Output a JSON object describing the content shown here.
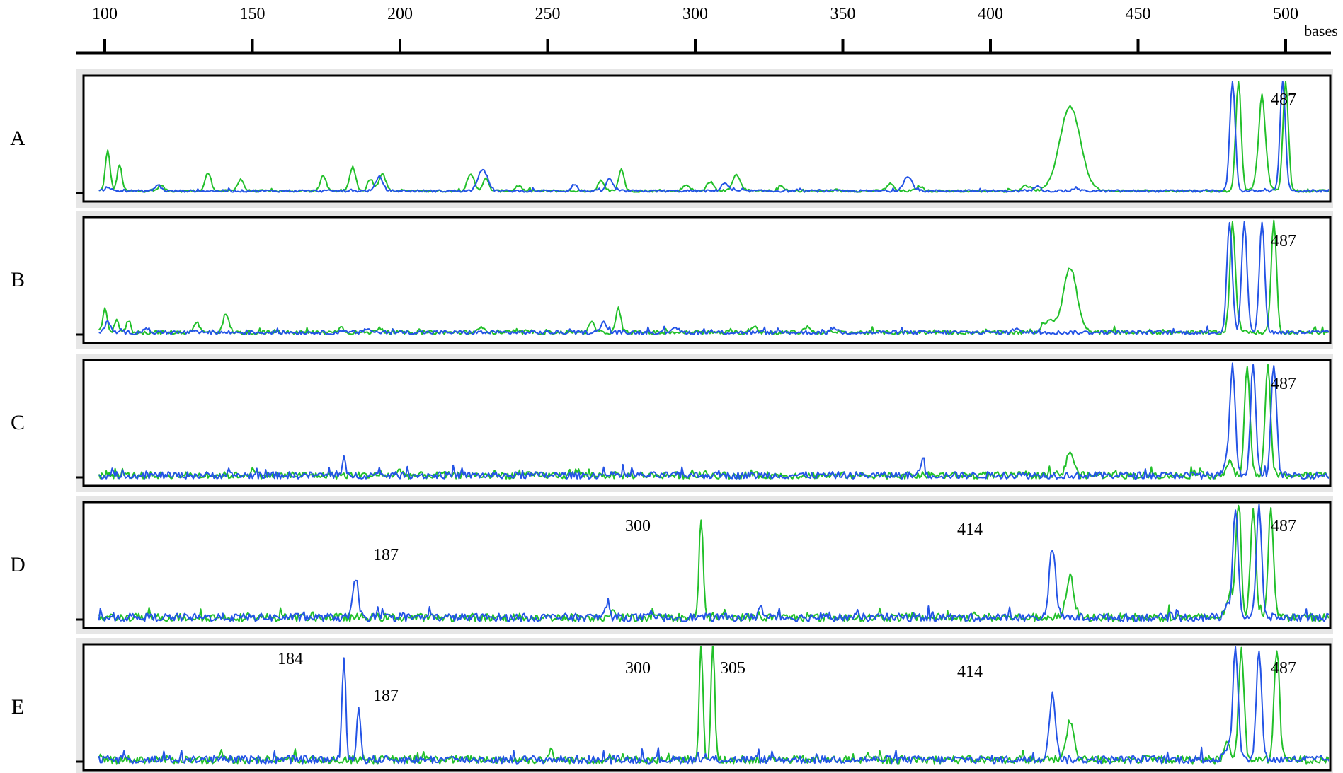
{
  "chart_data": {
    "type": "line",
    "title": "",
    "xlabel": "",
    "ylabel": "",
    "x_unit": "bases",
    "xlim": [
      90,
      525
    ],
    "x_ticks": [
      100,
      150,
      200,
      250,
      300,
      350,
      400,
      450,
      500
    ],
    "x_tick_labels": [
      "100",
      "150",
      "200",
      "250",
      "300",
      "350",
      "400",
      "450",
      "500"
    ],
    "grid": false,
    "legend": "none",
    "colors": {
      "green": "#22c02a",
      "blue": "#2454e6"
    },
    "panels": [
      {
        "label": "A",
        "noise": 0.012,
        "annotations": [
          {
            "text": "487",
            "x": 492
          }
        ],
        "series": [
          {
            "color": "green",
            "peaks": [
              [
                101,
                0.4,
                0.8
              ],
              [
                105,
                0.26,
                0.8
              ],
              [
                119,
                0.06,
                0.9
              ],
              [
                135,
                0.18,
                1.0
              ],
              [
                146,
                0.12,
                1.0
              ],
              [
                174,
                0.16,
                0.9
              ],
              [
                184,
                0.24,
                1.0
              ],
              [
                190,
                0.12,
                1.0
              ],
              [
                194,
                0.18,
                1.1
              ],
              [
                224,
                0.16,
                1.2
              ],
              [
                229,
                0.12,
                1.0
              ],
              [
                240,
                0.05,
                1.0
              ],
              [
                268,
                0.1,
                1.0
              ],
              [
                275,
                0.22,
                0.9
              ],
              [
                297,
                0.06,
                1.2
              ],
              [
                305,
                0.09,
                1.2
              ],
              [
                314,
                0.16,
                1.4
              ],
              [
                329,
                0.05,
                1.0
              ],
              [
                366,
                0.07,
                1.2
              ],
              [
                376,
                0.05,
                1.0
              ],
              [
                412,
                0.05,
                1.5
              ],
              [
                427,
                0.84,
                3.5
              ],
              [
                492,
                0.48,
                1.5
              ]
            ],
            "spikes": [
              [
                484,
                1.1
              ],
              [
                492,
                0.48
              ],
              [
                500,
                1.1
              ]
            ]
          },
          {
            "color": "blue",
            "peaks": [
              [
                101,
                0.04,
                1.0
              ],
              [
                118,
                0.06,
                1.0
              ],
              [
                193,
                0.14,
                1.2
              ],
              [
                228,
                0.22,
                1.6
              ],
              [
                259,
                0.07,
                0.9
              ],
              [
                271,
                0.12,
                1.1
              ],
              [
                310,
                0.08,
                1.2
              ],
              [
                372,
                0.14,
                1.5
              ],
              [
                416,
                0.06,
                1.0
              ],
              [
                429,
                0.03,
                1.0
              ]
            ],
            "spikes": [
              [
                482,
                1.1
              ],
              [
                499,
                1.1
              ]
            ]
          }
        ]
      },
      {
        "label": "B",
        "noise": 0.02,
        "annotations": [
          {
            "text": "487",
            "x": 492
          }
        ],
        "series": [
          {
            "color": "green",
            "peaks": [
              [
                100,
                0.24,
                0.7
              ],
              [
                104,
                0.14,
                0.7
              ],
              [
                108,
                0.12,
                0.7
              ],
              [
                131,
                0.1,
                1.0
              ],
              [
                141,
                0.18,
                1.0
              ],
              [
                180,
                0.05,
                1.0
              ],
              [
                193,
                0.05,
                1.0
              ],
              [
                228,
                0.06,
                1.0
              ],
              [
                265,
                0.1,
                0.9
              ],
              [
                274,
                0.24,
                0.8
              ],
              [
                320,
                0.07,
                1.0
              ],
              [
                338,
                0.06,
                1.0
              ],
              [
                420,
                0.12,
                2.0
              ],
              [
                427,
                0.64,
                2.3
              ],
              [
                484,
                0.05,
                1.0
              ]
            ],
            "spikes": [
              [
                482,
                1.1
              ],
              [
                496,
                1.1
              ]
            ]
          },
          {
            "color": "blue",
            "peaks": [
              [
                101,
                0.1,
                1.0
              ],
              [
                114,
                0.04,
                1.0
              ],
              [
                189,
                0.04,
                1.0
              ],
              [
                269,
                0.1,
                1.0
              ],
              [
                293,
                0.06,
                1.0
              ],
              [
                347,
                0.05,
                1.0
              ],
              [
                409,
                0.05,
                1.0
              ]
            ],
            "spikes": [
              [
                481,
                1.1
              ],
              [
                486,
                1.1
              ],
              [
                492,
                1.1
              ]
            ]
          }
        ]
      },
      {
        "label": "C",
        "noise": 0.035,
        "annotations": [
          {
            "text": "487",
            "x": 492
          }
        ],
        "series": [
          {
            "color": "green",
            "peaks": [
              [
                150,
                0.05,
                1.0
              ],
              [
                200,
                0.04,
                1.0
              ],
              [
                260,
                0.04,
                1.0
              ],
              [
                427,
                0.24,
                1.2
              ],
              [
                481,
                0.12,
                1.0
              ]
            ],
            "spikes": [
              [
                487,
                1.1
              ],
              [
                494,
                1.1
              ]
            ]
          },
          {
            "color": "blue",
            "peaks": [
              [
                181,
                0.16,
                0.5
              ],
              [
                377,
                0.2,
                0.5
              ],
              [
                480,
                0.1,
                1.0
              ]
            ],
            "spikes": [
              [
                482,
                1.1
              ],
              [
                489,
                1.1
              ],
              [
                496,
                1.1
              ]
            ]
          }
        ]
      },
      {
        "label": "D",
        "noise": 0.04,
        "annotations": [
          {
            "text": "187",
            "x": 187
          },
          {
            "text": "300",
            "x": 300
          },
          {
            "text": "414",
            "x": 414
          },
          {
            "text": "487",
            "x": 492
          }
        ],
        "series": [
          {
            "color": "green",
            "peaks": [
              [
                272,
                0.1,
                0.8
              ],
              [
                302,
                0.98,
                0.7
              ],
              [
                427,
                0.4,
                1.3
              ],
              [
                481,
                0.22,
                1.2
              ]
            ],
            "spikes": [
              [
                484,
                1.1
              ],
              [
                489,
                1.1
              ],
              [
                495,
                1.1
              ]
            ]
          },
          {
            "color": "blue",
            "peaks": [
              [
                185,
                0.38,
                0.9
              ],
              [
                270,
                0.12,
                0.8
              ],
              [
                322,
                0.14,
                0.6
              ],
              [
                421,
                0.68,
                1.1
              ],
              [
                480,
                0.1,
                1.0
              ]
            ],
            "spikes": [
              [
                483,
                1.1
              ],
              [
                491,
                1.1
              ]
            ]
          }
        ]
      },
      {
        "label": "E",
        "noise": 0.04,
        "annotations": [
          {
            "text": "184",
            "x": 184
          },
          {
            "text": "187",
            "x": 187
          },
          {
            "text": "300",
            "x": 300
          },
          {
            "text": "305",
            "x": 305
          },
          {
            "text": "414",
            "x": 414
          },
          {
            "text": "487",
            "x": 492
          }
        ],
        "series": [
          {
            "color": "green",
            "peaks": [
              [
                251,
                0.08,
                0.8
              ],
              [
                302,
                1.2,
                0.6
              ],
              [
                306,
                1.2,
                0.6
              ],
              [
                427,
                0.38,
                1.3
              ],
              [
                480,
                0.16,
                1.0
              ]
            ],
            "spikes": [
              [
                485,
                1.1
              ],
              [
                497,
                1.1
              ]
            ]
          },
          {
            "color": "blue",
            "peaks": [
              [
                181,
                1.05,
                0.6
              ],
              [
                186,
                0.55,
                0.6
              ],
              [
                421,
                0.64,
                1.1
              ],
              [
                480,
                0.12,
                1.0
              ]
            ],
            "spikes": [
              [
                483,
                1.1
              ],
              [
                491,
                1.1
              ]
            ]
          }
        ]
      }
    ]
  }
}
